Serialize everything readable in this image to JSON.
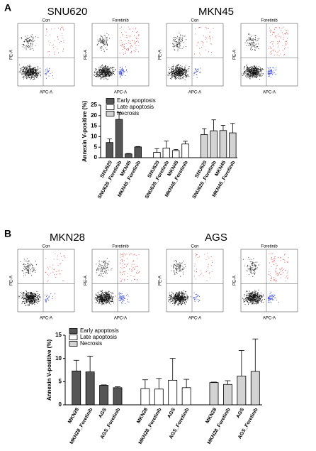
{
  "panels": [
    {
      "label": "A",
      "cell_lines": [
        "SNU620",
        "MKN45"
      ],
      "flow_titles": [
        "Con",
        "Foretinib",
        "Con",
        "Foretinib"
      ],
      "flow_x_label": "APC-A",
      "flow_y_label": "PE-A"
    },
    {
      "label": "B",
      "cell_lines": [
        "MKN28",
        "AGS"
      ],
      "flow_titles": [
        "Con",
        "Foretinib",
        "Con",
        "Foretinib"
      ],
      "flow_x_label": "APC-A",
      "flow_y_label": "PE-A"
    }
  ],
  "chart_data": [
    {
      "type": "bar",
      "y_label": "Annexin V-positive (%)",
      "categories": [
        "SNU620",
        "SNU620_Foretinib",
        "MKN45",
        "MKN45_Foretinib"
      ],
      "series": [
        {
          "name": "Early apoptosis",
          "color": "#555555",
          "values": [
            7.2,
            18.2,
            1.8,
            5.1
          ],
          "errors": [
            1.7,
            3.3,
            0.2,
            0.2
          ]
        },
        {
          "name": "Late apoptosis",
          "color": "#ffffff",
          "values": [
            2.5,
            4.6,
            3.4,
            6.5
          ],
          "errors": [
            1.8,
            3.3,
            0.5,
            1.3
          ]
        },
        {
          "name": "Necrosis",
          "color": "#d3d3d3",
          "values": [
            11,
            12.8,
            12.9,
            11.8
          ],
          "errors": [
            2.8,
            5.2,
            2.5,
            4.5
          ]
        }
      ],
      "ylim": [
        0,
        25
      ],
      "yticks": [
        0,
        5,
        10,
        15,
        20,
        25
      ]
    },
    {
      "type": "bar",
      "y_label": "Annexin V-positive (%)",
      "categories": [
        "MKN28",
        "MKN28_Foretinib",
        "AGS",
        "AGS_Foretinib"
      ],
      "series": [
        {
          "name": "Early apoptosis",
          "color": "#555555",
          "values": [
            7.3,
            7.1,
            4.2,
            3.7
          ],
          "errors": [
            2.3,
            3.4,
            0.1,
            0.2
          ]
        },
        {
          "name": "Late apoptosis",
          "color": "#ffffff",
          "values": [
            3.5,
            3.4,
            5.3,
            3.7
          ],
          "errors": [
            1.9,
            2.3,
            4.7,
            1.8
          ]
        },
        {
          "name": "Necrosis",
          "color": "#d3d3d3",
          "values": [
            4.8,
            4.4,
            6.2,
            7.2
          ],
          "errors": [
            0.1,
            0.8,
            5.5,
            7.0
          ]
        }
      ],
      "ylim": [
        0,
        15
      ],
      "yticks": [
        0,
        5,
        10,
        15
      ]
    }
  ]
}
